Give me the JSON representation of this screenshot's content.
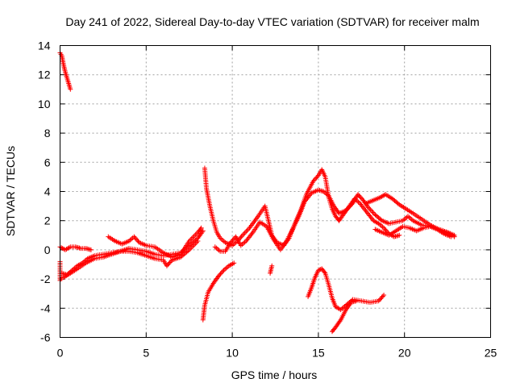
{
  "chart_data": {
    "type": "scatter",
    "title": "Day 241 of 2022, Sidereal Day-to-day VTEC variation (SDTVAR) for receiver malm",
    "xlabel": "GPS time / hours",
    "ylabel": "SDTVAR / TECUs",
    "xlim": [
      0,
      25
    ],
    "ylim": [
      -6,
      14
    ],
    "xticks": [
      "0",
      "5",
      "10",
      "15",
      "20",
      "25"
    ],
    "yticks": [
      "-6",
      "-4",
      "-2",
      "0",
      "2",
      "4",
      "6",
      "8",
      "10",
      "12",
      "14"
    ],
    "grid": true,
    "marker": "+",
    "series": [
      {
        "name": "SDTVAR",
        "color": "#ff0000",
        "segments": [
          [
            [
              0.0,
              13.5
            ],
            [
              0.1,
              13.3
            ],
            [
              0.2,
              12.7
            ],
            [
              0.3,
              12.2
            ],
            [
              0.4,
              11.8
            ],
            [
              0.5,
              11.4
            ],
            [
              0.6,
              11.0
            ]
          ],
          [
            [
              0.0,
              -0.8
            ],
            [
              0.0,
              -1.5
            ],
            [
              0.0,
              -2.1
            ],
            [
              0.1,
              -1.9
            ]
          ],
          [
            [
              0.0,
              0.2
            ],
            [
              0.3,
              0.0
            ],
            [
              0.6,
              0.2
            ],
            [
              0.9,
              0.2
            ],
            [
              1.2,
              0.1
            ],
            [
              1.5,
              0.1
            ],
            [
              1.8,
              0.0
            ]
          ],
          [
            [
              0.1,
              -1.6
            ],
            [
              0.4,
              -1.7
            ],
            [
              0.7,
              -1.4
            ],
            [
              1.0,
              -1.1
            ],
            [
              1.3,
              -0.9
            ],
            [
              1.6,
              -0.6
            ],
            [
              2.0,
              -0.4
            ],
            [
              2.5,
              -0.3
            ],
            [
              3.0,
              -0.2
            ],
            [
              3.5,
              -0.1
            ],
            [
              4.0,
              0.1
            ],
            [
              4.5,
              0.0
            ],
            [
              5.0,
              -0.1
            ],
            [
              5.5,
              -0.3
            ],
            [
              6.0,
              -0.4
            ],
            [
              6.5,
              -0.3
            ],
            [
              7.0,
              -0.2
            ],
            [
              7.5,
              0.3
            ],
            [
              8.0,
              0.8
            ],
            [
              8.3,
              1.3
            ]
          ],
          [
            [
              0.2,
              -1.9
            ],
            [
              0.6,
              -1.6
            ],
            [
              1.0,
              -1.3
            ],
            [
              1.5,
              -0.9
            ],
            [
              2.0,
              -0.6
            ],
            [
              2.5,
              -0.5
            ],
            [
              3.0,
              -0.3
            ],
            [
              3.5,
              -0.1
            ],
            [
              4.0,
              -0.1
            ],
            [
              4.5,
              -0.2
            ],
            [
              5.0,
              -0.4
            ],
            [
              5.5,
              -0.6
            ],
            [
              6.0,
              -0.7
            ],
            [
              6.2,
              -1.1
            ],
            [
              6.5,
              -0.7
            ],
            [
              7.0,
              -0.5
            ],
            [
              7.5,
              0.0
            ],
            [
              8.0,
              0.6
            ]
          ],
          [
            [
              2.8,
              0.9
            ],
            [
              3.2,
              0.6
            ],
            [
              3.6,
              0.4
            ],
            [
              4.0,
              0.6
            ],
            [
              4.3,
              0.9
            ],
            [
              4.6,
              0.5
            ],
            [
              5.0,
              0.3
            ],
            [
              5.5,
              0.2
            ],
            [
              6.0,
              -0.2
            ],
            [
              6.5,
              -0.5
            ],
            [
              7.0,
              -0.3
            ],
            [
              7.5,
              0.6
            ],
            [
              8.0,
              1.2
            ],
            [
              8.2,
              1.5
            ]
          ],
          [
            [
              8.4,
              5.6
            ],
            [
              8.5,
              4.2
            ],
            [
              8.7,
              3.0
            ],
            [
              8.9,
              2.0
            ],
            [
              9.1,
              1.2
            ],
            [
              9.3,
              0.8
            ],
            [
              9.6,
              0.5
            ],
            [
              10.0,
              0.3
            ],
            [
              10.3,
              0.6
            ],
            [
              10.6,
              1.0
            ],
            [
              11.0,
              1.5
            ],
            [
              11.5,
              2.3
            ],
            [
              11.9,
              3.0
            ],
            [
              12.1,
              2.0
            ],
            [
              12.3,
              1.0
            ],
            [
              12.6,
              0.5
            ],
            [
              13.0,
              0.3
            ],
            [
              13.3,
              0.8
            ],
            [
              13.6,
              1.7
            ],
            [
              14.0,
              2.8
            ],
            [
              14.3,
              3.8
            ],
            [
              14.7,
              4.7
            ],
            [
              15.0,
              5.1
            ],
            [
              15.2,
              5.5
            ],
            [
              15.4,
              5.0
            ],
            [
              15.6,
              3.6
            ],
            [
              15.8,
              2.8
            ],
            [
              16.0,
              2.3
            ],
            [
              16.2,
              2.0
            ],
            [
              16.5,
              2.5
            ],
            [
              16.8,
              3.0
            ],
            [
              17.1,
              3.5
            ],
            [
              17.4,
              3.2
            ],
            [
              17.8,
              2.6
            ],
            [
              18.2,
              2.0
            ],
            [
              18.5,
              1.8
            ],
            [
              18.8,
              1.5
            ],
            [
              19.1,
              1.1
            ],
            [
              19.4,
              0.9
            ],
            [
              19.7,
              1.0
            ]
          ],
          [
            [
              9.0,
              0.2
            ],
            [
              9.3,
              -0.1
            ],
            [
              9.6,
              -0.1
            ],
            [
              9.9,
              0.5
            ],
            [
              10.2,
              0.9
            ],
            [
              10.5,
              0.3
            ],
            [
              10.8,
              0.6
            ],
            [
              11.2,
              1.2
            ],
            [
              11.6,
              1.9
            ],
            [
              12.0,
              1.6
            ],
            [
              12.4,
              0.7
            ],
            [
              12.8,
              0.0
            ],
            [
              13.2,
              0.7
            ],
            [
              13.5,
              1.4
            ],
            [
              13.9,
              2.4
            ],
            [
              14.2,
              3.3
            ],
            [
              14.6,
              3.9
            ],
            [
              15.0,
              4.1
            ],
            [
              15.3,
              4.0
            ],
            [
              15.6,
              3.7
            ],
            [
              15.9,
              3.0
            ],
            [
              16.2,
              2.5
            ],
            [
              16.6,
              2.7
            ],
            [
              17.0,
              3.2
            ],
            [
              17.3,
              3.8
            ],
            [
              17.6,
              3.4
            ],
            [
              17.9,
              2.9
            ],
            [
              18.3,
              2.4
            ],
            [
              18.7,
              2.0
            ],
            [
              19.1,
              1.8
            ],
            [
              19.5,
              1.9
            ],
            [
              19.9,
              2.0
            ],
            [
              20.2,
              2.3
            ],
            [
              20.5,
              2.0
            ],
            [
              21.0,
              1.7
            ],
            [
              21.5,
              1.6
            ],
            [
              22.0,
              1.4
            ],
            [
              22.5,
              1.2
            ],
            [
              22.9,
              1.0
            ]
          ],
          [
            [
              8.3,
              -4.8
            ],
            [
              8.4,
              -3.8
            ],
            [
              8.6,
              -2.9
            ],
            [
              8.9,
              -2.3
            ],
            [
              9.2,
              -1.8
            ],
            [
              9.5,
              -1.4
            ],
            [
              9.8,
              -1.1
            ],
            [
              10.1,
              -0.9
            ]
          ],
          [
            [
              12.2,
              -1.6
            ],
            [
              12.3,
              -1.1
            ]
          ],
          [
            [
              14.4,
              -3.2
            ],
            [
              14.6,
              -2.6
            ],
            [
              14.8,
              -1.9
            ],
            [
              15.0,
              -1.4
            ],
            [
              15.2,
              -1.3
            ],
            [
              15.4,
              -1.6
            ],
            [
              15.6,
              -2.4
            ],
            [
              15.8,
              -3.3
            ],
            [
              16.0,
              -3.9
            ],
            [
              16.3,
              -4.1
            ],
            [
              16.6,
              -3.8
            ],
            [
              17.0,
              -3.4
            ],
            [
              17.5,
              -3.5
            ],
            [
              18.0,
              -3.6
            ],
            [
              18.5,
              -3.5
            ],
            [
              18.8,
              -3.1
            ]
          ],
          [
            [
              15.8,
              -5.6
            ],
            [
              16.0,
              -5.3
            ],
            [
              16.3,
              -4.8
            ],
            [
              16.6,
              -4.1
            ],
            [
              16.9,
              -3.6
            ],
            [
              17.2,
              -3.5
            ]
          ],
          [
            [
              17.8,
              3.2
            ],
            [
              18.2,
              3.4
            ],
            [
              18.6,
              3.6
            ],
            [
              18.9,
              3.8
            ],
            [
              19.3,
              3.5
            ],
            [
              19.7,
              3.1
            ],
            [
              20.1,
              2.8
            ],
            [
              20.5,
              2.5
            ],
            [
              21.0,
              2.1
            ],
            [
              21.5,
              1.7
            ],
            [
              22.0,
              1.4
            ],
            [
              22.5,
              1.2
            ],
            [
              22.9,
              0.9
            ]
          ],
          [
            [
              18.3,
              1.4
            ],
            [
              18.7,
              1.2
            ],
            [
              19.1,
              1.0
            ],
            [
              19.5,
              1.3
            ],
            [
              19.9,
              1.6
            ],
            [
              20.3,
              1.5
            ],
            [
              20.7,
              1.3
            ],
            [
              21.1,
              1.5
            ],
            [
              21.5,
              1.6
            ],
            [
              21.9,
              1.4
            ],
            [
              22.3,
              1.1
            ],
            [
              22.7,
              0.9
            ]
          ]
        ]
      }
    ]
  }
}
